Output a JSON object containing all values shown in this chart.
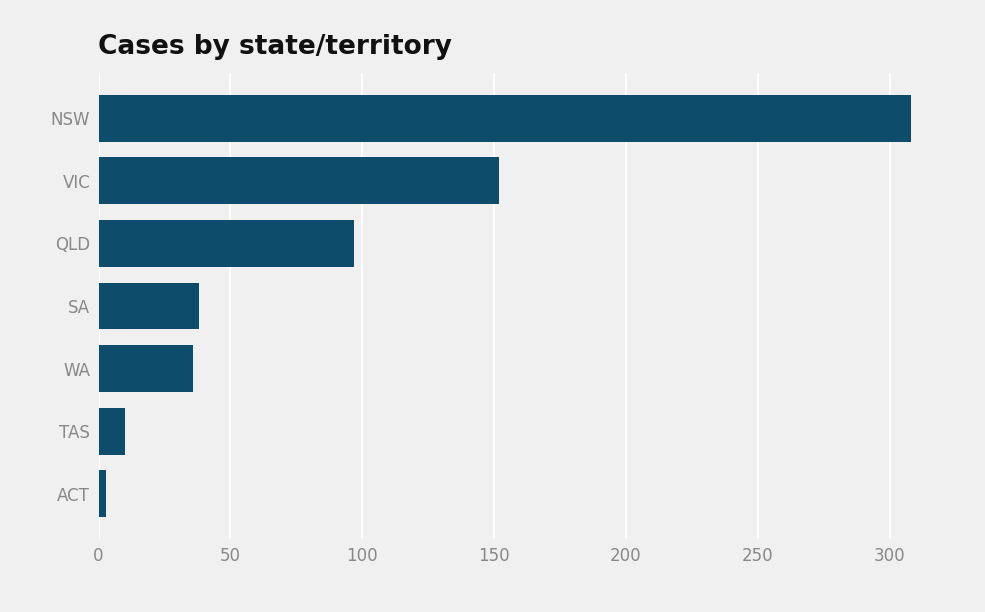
{
  "title": "Cases by state/territory",
  "categories": [
    "ACT",
    "TAS",
    "WA",
    "SA",
    "QLD",
    "VIC",
    "NSW"
  ],
  "values": [
    3,
    10,
    36,
    38,
    97,
    152,
    308
  ],
  "bar_color": "#0d4d6b",
  "background_color": "#f0f0f0",
  "plot_background": "#f0f0f0",
  "xlim": [
    0,
    325
  ],
  "xticks": [
    0,
    50,
    100,
    150,
    200,
    250,
    300
  ],
  "title_fontsize": 19,
  "ylabel_fontsize": 12,
  "tick_fontsize": 12,
  "bar_height": 0.75,
  "grid_color": "#ffffff",
  "ylabel_color": "#888888",
  "xtick_color": "#888888",
  "title_color": "#111111"
}
